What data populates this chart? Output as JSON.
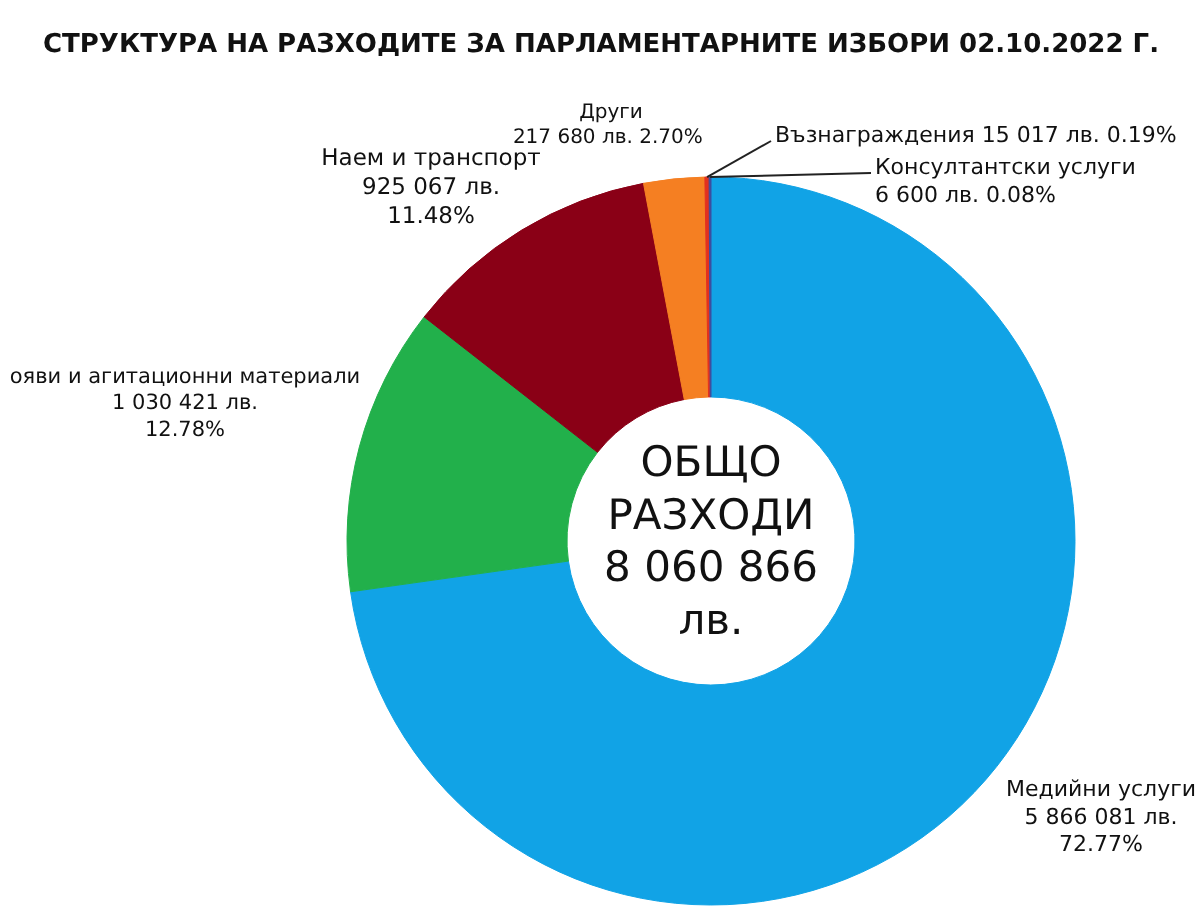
{
  "chart_data": {
    "type": "donut",
    "title": "СТРУКТУРА НА РАЗХОДИТЕ ЗА ПАРЛАМЕНТАРНИТЕ ИЗБОРИ 02.10.2022 Г.",
    "categories": [
      "Медийни услуги",
      "ояви и агитационни материали",
      "Наем и транспорт",
      "Други",
      "Възнаграждения",
      "Консултантски услуги"
    ],
    "values": [
      5866081,
      1030421,
      925067,
      217680,
      15017,
      6600
    ],
    "colors": [
      "#11a3e6",
      "#22b04b",
      "#8a0016",
      "#f57f22",
      "#e2311f",
      "#3d4fa0"
    ],
    "value_labels": [
      "5 866 081 лв.\n72.77%",
      "1 030 421 лв.\n12.78%",
      "925 067 лв.\n11.48%",
      "217 680 лв.  2.70%",
      "15 017 лв. 0.19%",
      "6 600 лв. 0.08%"
    ],
    "annotations": [
      "ОБЩО\nРАЗХОДИ\n8 060 866\nлв."
    ]
  }
}
